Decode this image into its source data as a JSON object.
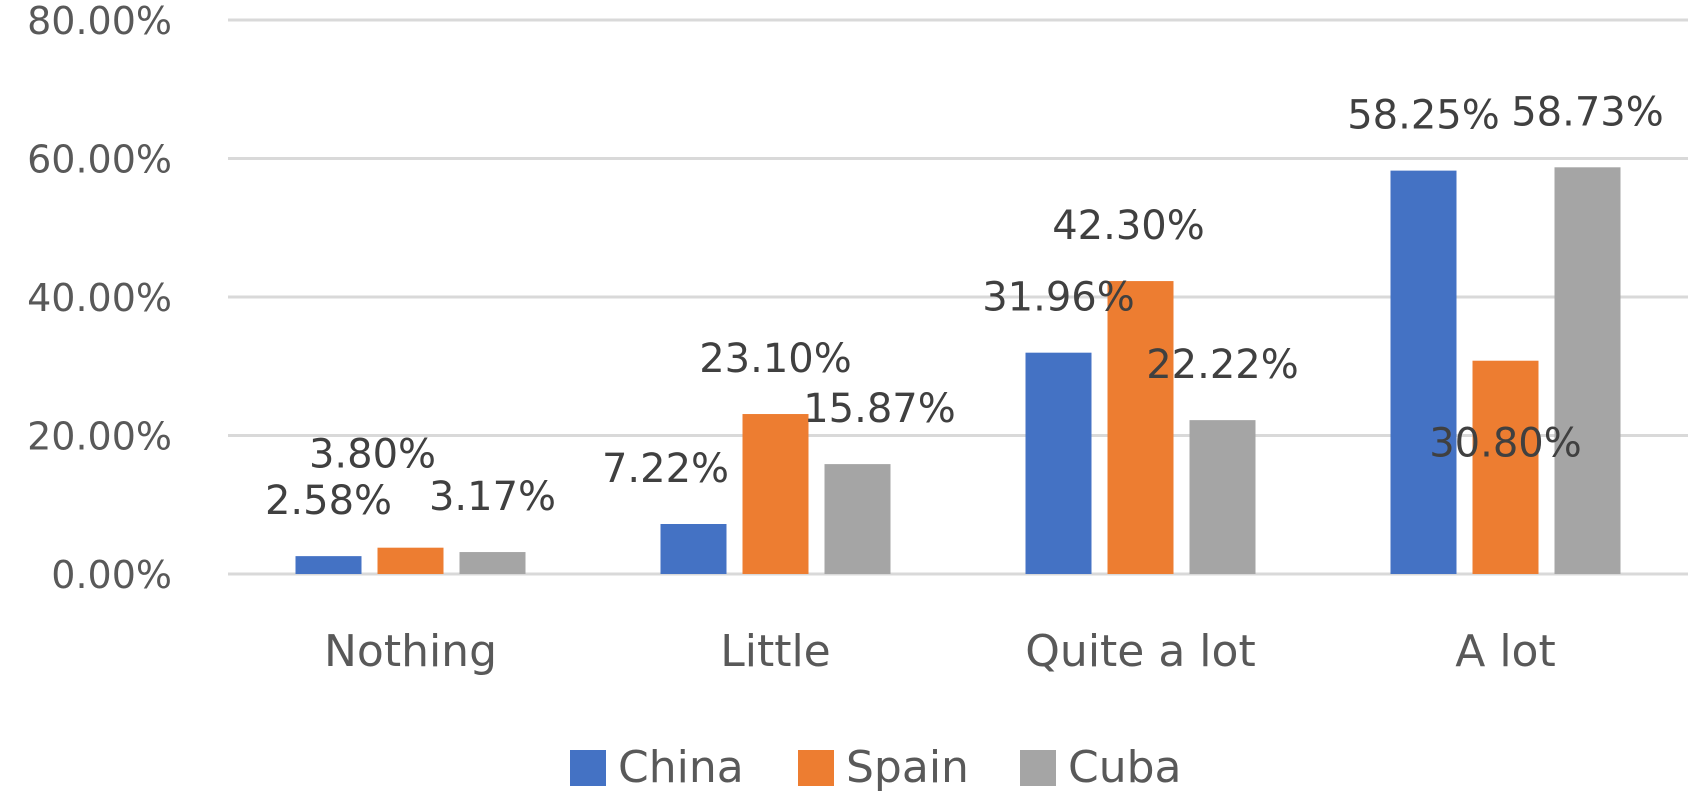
{
  "chart_data": {
    "type": "bar",
    "categories": [
      "Nothing",
      "Little",
      "Quite a lot",
      "A lot"
    ],
    "series": [
      {
        "name": "China",
        "color": "#4472c4",
        "values": [
          2.58,
          7.22,
          31.96,
          58.25
        ],
        "labels": [
          "2.58%",
          "7.22%",
          "31.96%",
          "58.25%"
        ]
      },
      {
        "name": "Spain",
        "color": "#ed7d31",
        "values": [
          3.8,
          23.1,
          42.3,
          30.8
        ],
        "labels": [
          "3.80%",
          "23.10%",
          "42.30%",
          "30.80%"
        ]
      },
      {
        "name": "Cuba",
        "color": "#a5a5a5",
        "values": [
          3.17,
          15.87,
          22.22,
          58.73
        ],
        "labels": [
          "3.17%",
          "15.87%",
          "22.22%",
          "58.73%"
        ]
      }
    ],
    "y_ticks": [
      "0.00%",
      "20.00%",
      "40.00%",
      "60.00%",
      "80.00%"
    ],
    "ylim": [
      0,
      80
    ],
    "y_unit": "percent",
    "grid": true,
    "legend": "bottom-center"
  }
}
